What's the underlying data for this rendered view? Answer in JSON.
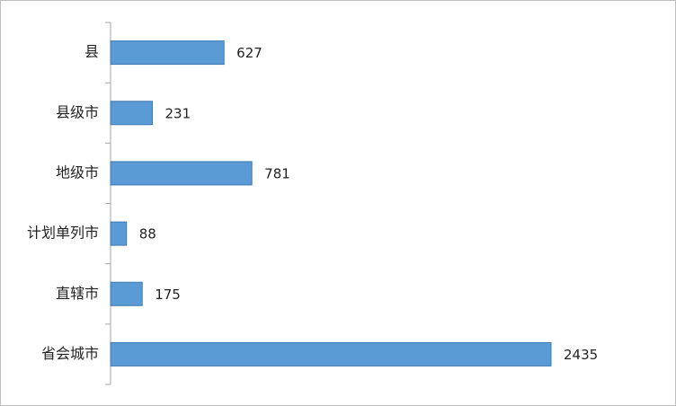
{
  "chart_data": {
    "type": "hbar",
    "categories": [
      "县",
      "县级市",
      "地级市",
      "计划单列市",
      "直辖市",
      "省会城市"
    ],
    "values": [
      627,
      231,
      781,
      88,
      175,
      2435
    ],
    "color": "#5b9bd5"
  }
}
